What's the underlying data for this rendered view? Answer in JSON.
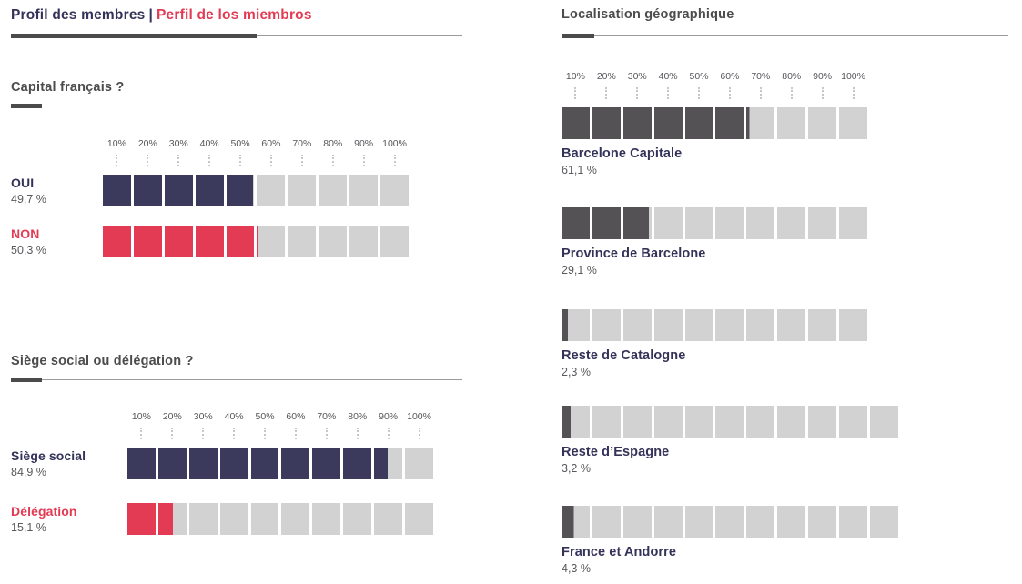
{
  "title_bar": {
    "fr": "Profil des membres",
    "separator": "|",
    "es": "Perfil de los miembros"
  },
  "colors": {
    "navy": "#3b3a5d",
    "red": "#e23b53",
    "charcoal": "#545254",
    "track_gray": "#d2d2d2",
    "text_navy": "#343258",
    "heading_gray": "#4c4b4d",
    "value_gray": "#5a585c"
  },
  "chart_data": [
    {
      "type": "bar",
      "title": "Capital français ?",
      "unit": "%",
      "xlim": [
        0,
        100
      ],
      "ticks": [
        "10%",
        "20%",
        "30%",
        "40%",
        "50%",
        "60%",
        "70%",
        "80%",
        "90%",
        "100%"
      ],
      "categories": [
        "OUI",
        "NON"
      ],
      "values": [
        49.7,
        50.3
      ],
      "value_labels": [
        "49,7 %",
        "50,3 %"
      ],
      "bar_colors": [
        "#3b3a5d",
        "#e23b53"
      ],
      "label_colors": [
        "#343258",
        "#e23b53"
      ],
      "segments": [
        10,
        10
      ],
      "layout_hint": "horizontal segmented block bar, labels left, ticks above first row"
    },
    {
      "type": "bar",
      "title": "Siège social ou délégation ?",
      "unit": "%",
      "xlim": [
        0,
        100
      ],
      "ticks": [
        "10%",
        "20%",
        "30%",
        "40%",
        "50%",
        "60%",
        "70%",
        "80%",
        "90%",
        "100%"
      ],
      "categories": [
        "Siège social",
        "Délégation"
      ],
      "values": [
        84.9,
        15.1
      ],
      "value_labels": [
        "84,9 %",
        "15,1 %"
      ],
      "bar_colors": [
        "#3b3a5d",
        "#e23b53"
      ],
      "label_colors": [
        "#343258",
        "#e23b53"
      ],
      "segments": [
        10,
        10
      ],
      "layout_hint": "horizontal segmented block bar, labels left, ticks above first row"
    },
    {
      "type": "bar",
      "title": "Localisation géographique",
      "unit": "%",
      "xlim": [
        0,
        100
      ],
      "ticks": [
        "10%",
        "20%",
        "30%",
        "40%",
        "50%",
        "60%",
        "70%",
        "80%",
        "90%",
        "100%"
      ],
      "categories": [
        "Barcelone Capitale",
        "Province de Barcelone",
        "Reste de Catalogne",
        "Reste d’Espagne",
        "France et Andorre"
      ],
      "values": [
        61.1,
        29.1,
        2.3,
        3.2,
        4.3
      ],
      "value_labels": [
        "61,1 %",
        "29,1 %",
        "2,3 %",
        "3,2 %",
        "4,3 %"
      ],
      "bar_colors": [
        "#545254",
        "#545254",
        "#545254",
        "#545254",
        "#545254"
      ],
      "label_colors": [
        "#343258",
        "#343258",
        "#343258",
        "#343258",
        "#343258"
      ],
      "segments": [
        10,
        10,
        10,
        11,
        11
      ],
      "layout_hint": "horizontal segmented block bar, labels below, ticks above first row only"
    }
  ]
}
